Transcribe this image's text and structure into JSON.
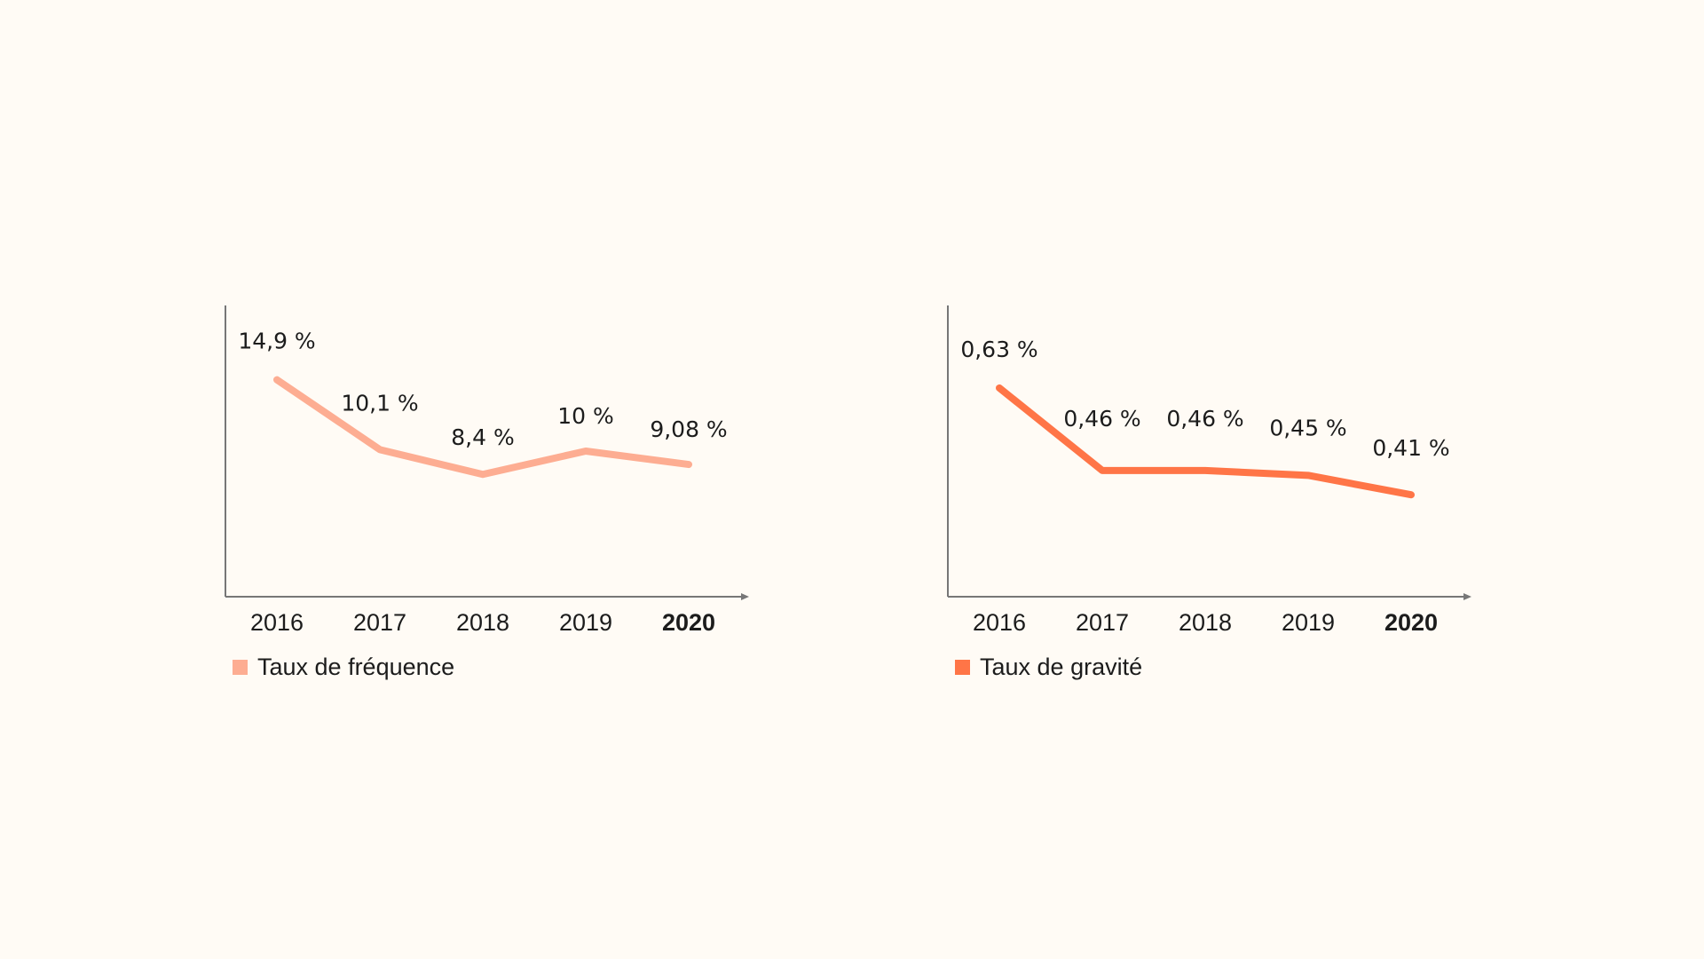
{
  "chart_data": [
    {
      "type": "line",
      "x": [
        "2016",
        "2017",
        "2018",
        "2019",
        "2020"
      ],
      "highlight_x": "2020",
      "series": [
        {
          "name": "Taux de fréquence",
          "values": [
            14.9,
            10.1,
            8.4,
            10,
            9.08
          ],
          "labels": [
            "14,9 %",
            "10,1 %",
            "8,4 %",
            "10 %",
            "9,08 %"
          ],
          "color": "#fdad92"
        }
      ],
      "ylim": [
        0,
        20
      ],
      "grid": false,
      "legend_position": "bottom-left"
    },
    {
      "type": "line",
      "x": [
        "2016",
        "2017",
        "2018",
        "2019",
        "2020"
      ],
      "highlight_x": "2020",
      "series": [
        {
          "name": "Taux de gravité",
          "values": [
            0.63,
            0.46,
            0.46,
            0.45,
            0.41
          ],
          "labels": [
            "0,63 %",
            "0,46 %",
            "0,46 %",
            "0,45 %",
            "0,41 %"
          ],
          "color": "#ff7547"
        }
      ],
      "ylim": [
        0.2,
        0.8
      ],
      "grid": false,
      "legend_position": "bottom-left"
    }
  ],
  "colors": {
    "background": "#fffbf5",
    "axis": "#777777",
    "text": "#1c1c1c",
    "highlight": "#ff7547"
  }
}
